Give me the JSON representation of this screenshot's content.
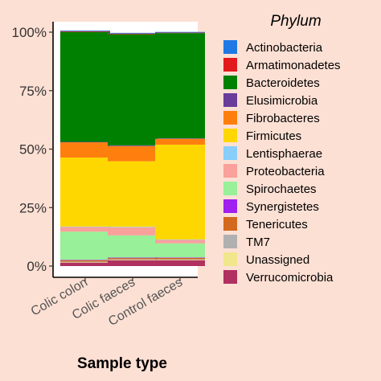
{
  "chart_data": {
    "type": "bar",
    "stacked": true,
    "categories": [
      "Colic colon",
      "Colic faeces",
      "Control faeces"
    ],
    "xlabel": "Sample type",
    "ylabel": "",
    "ylim": [
      0,
      100
    ],
    "yticks": [
      "0%",
      "25%",
      "50%",
      "75%",
      "100%"
    ],
    "legend_title": "Phylum",
    "legend_position": "right",
    "grid": false,
    "series": [
      {
        "name": "Actinobacteria",
        "color": "#1f78e4",
        "values": [
          0.3,
          0.3,
          0.3
        ]
      },
      {
        "name": "Armatimonadetes",
        "color": "#e31a1c",
        "values": [
          0.3,
          0.3,
          0.2
        ]
      },
      {
        "name": "Bacteroidetes",
        "color": "#008000",
        "values": [
          47.0,
          47.5,
          45.0
        ]
      },
      {
        "name": "Elusimicrobia",
        "color": "#6a3d9a",
        "values": [
          0.2,
          0.3,
          0.2
        ]
      },
      {
        "name": "Fibrobacteres",
        "color": "#ff7f0e",
        "values": [
          6.5,
          6.5,
          2.5
        ]
      },
      {
        "name": "Firmicutes",
        "color": "#ffd700",
        "values": [
          29.5,
          28.0,
          40.5
        ]
      },
      {
        "name": "Lentisphaerae",
        "color": "#87cefa",
        "values": [
          0.2,
          0.2,
          0.2
        ]
      },
      {
        "name": "Proteobacteria",
        "color": "#f9a19a",
        "values": [
          2.0,
          3.5,
          1.5
        ]
      },
      {
        "name": "Spirochaetes",
        "color": "#98f098",
        "values": [
          12.0,
          9.5,
          6.0
        ]
      },
      {
        "name": "Synergistetes",
        "color": "#a020f0",
        "values": [
          0.2,
          0.2,
          0.2
        ]
      },
      {
        "name": "Tenericutes",
        "color": "#d2691e",
        "values": [
          0.6,
          0.5,
          0.6
        ]
      },
      {
        "name": "TM7",
        "color": "#b0b0b0",
        "values": [
          0.2,
          0.2,
          0.2
        ]
      },
      {
        "name": "Unassigned",
        "color": "#f0e68c",
        "values": [
          0.2,
          0.2,
          0.2
        ]
      },
      {
        "name": "Verrucomicrobia",
        "color": "#b03060",
        "values": [
          1.5,
          2.5,
          2.5
        ]
      }
    ]
  }
}
